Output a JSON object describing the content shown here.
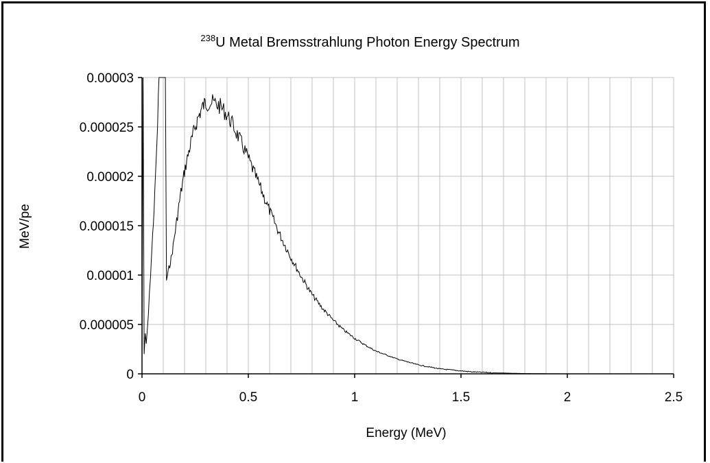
{
  "chart_data": {
    "type": "line",
    "title_sup": "238",
    "title": "U Metal Bremsstrahlung Photon Energy Spectrum",
    "xlabel": "Energy (MeV)",
    "ylabel": "MeV/pe",
    "xlim": [
      0,
      2.5
    ],
    "ylim": [
      0,
      3e-05
    ],
    "x_tick_labels": [
      "0",
      "0.5",
      "1",
      "1.5",
      "2",
      "2.5"
    ],
    "y_tick_labels": [
      "0",
      "0.000005",
      "0.00001",
      "0.000015",
      "0.00002",
      "0.000025",
      "0.00003"
    ],
    "x_gridline_step": 0.1,
    "y_gridline_step": 5e-06,
    "grid": true,
    "legend": "none",
    "series": [
      {
        "color": "#000000",
        "points": [
          [
            0.0,
            1e-06
          ],
          [
            0.005,
            3e-05
          ],
          [
            0.01,
            2e-06
          ],
          [
            0.015,
            4e-06
          ],
          [
            0.02,
            3e-06
          ],
          [
            0.025,
            4.5e-06
          ],
          [
            0.03,
            6e-06
          ],
          [
            0.035,
            8e-06
          ],
          [
            0.04,
            1e-05
          ],
          [
            0.05,
            1.4e-05
          ],
          [
            0.06,
            1.8e-05
          ],
          [
            0.065,
            2.1e-05
          ],
          [
            0.07,
            2.3e-05
          ],
          [
            0.08,
            3e-05
          ],
          [
            0.09,
            3e-05
          ],
          [
            0.1,
            3e-05
          ],
          [
            0.11,
            3e-05
          ],
          [
            0.115,
            9.5e-06
          ],
          [
            0.12,
            1e-05
          ],
          [
            0.13,
            1.1e-05
          ],
          [
            0.14,
            1.2e-05
          ],
          [
            0.15,
            1.35e-05
          ],
          [
            0.16,
            1.5e-05
          ],
          [
            0.17,
            1.65e-05
          ],
          [
            0.18,
            1.8e-05
          ],
          [
            0.19,
            1.92e-05
          ],
          [
            0.2,
            2.05e-05
          ],
          [
            0.21,
            2.15e-05
          ],
          [
            0.22,
            2.25e-05
          ],
          [
            0.23,
            2.34e-05
          ],
          [
            0.24,
            2.42e-05
          ],
          [
            0.25,
            2.5e-05
          ],
          [
            0.26,
            2.57e-05
          ],
          [
            0.27,
            2.63e-05
          ],
          [
            0.28,
            2.68e-05
          ],
          [
            0.29,
            2.72e-05
          ],
          [
            0.3,
            2.74e-05
          ],
          [
            0.32,
            2.75e-05
          ],
          [
            0.34,
            2.74e-05
          ],
          [
            0.36,
            2.72e-05
          ],
          [
            0.38,
            2.68e-05
          ],
          [
            0.4,
            2.62e-05
          ],
          [
            0.42,
            2.55e-05
          ],
          [
            0.44,
            2.46e-05
          ],
          [
            0.46,
            2.37e-05
          ],
          [
            0.48,
            2.28e-05
          ],
          [
            0.5,
            2.18e-05
          ],
          [
            0.55,
            1.92e-05
          ],
          [
            0.6,
            1.65e-05
          ],
          [
            0.65,
            1.4e-05
          ],
          [
            0.7,
            1.18e-05
          ],
          [
            0.75,
            9.8e-06
          ],
          [
            0.8,
            8e-06
          ],
          [
            0.85,
            6.6e-06
          ],
          [
            0.9,
            5.4e-06
          ],
          [
            0.95,
            4.4e-06
          ],
          [
            1.0,
            3.6e-06
          ],
          [
            1.05,
            2.9e-06
          ],
          [
            1.1,
            2.3e-06
          ],
          [
            1.15,
            1.9e-06
          ],
          [
            1.2,
            1.5e-06
          ],
          [
            1.25,
            1.2e-06
          ],
          [
            1.3,
            9e-07
          ],
          [
            1.35,
            7e-07
          ],
          [
            1.4,
            5e-07
          ],
          [
            1.45,
            4e-07
          ],
          [
            1.5,
            3e-07
          ],
          [
            1.55,
            2e-07
          ],
          [
            1.6,
            1.5e-07
          ],
          [
            1.65,
            1e-07
          ],
          [
            1.7,
            8e-08
          ],
          [
            1.75,
            5e-08
          ],
          [
            1.8,
            3e-08
          ],
          [
            1.85,
            2e-08
          ],
          [
            1.9,
            1e-08
          ],
          [
            2.0,
            0.0
          ],
          [
            2.5,
            0.0
          ]
        ]
      }
    ]
  }
}
